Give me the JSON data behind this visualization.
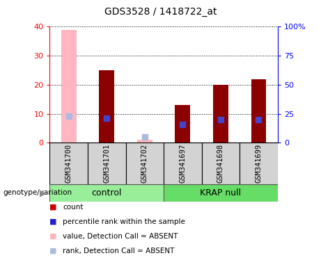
{
  "title": "GDS3528 / 1418722_at",
  "samples": [
    "GSM341700",
    "GSM341701",
    "GSM341702",
    "GSM341697",
    "GSM341698",
    "GSM341699"
  ],
  "absent": [
    true,
    false,
    true,
    false,
    false,
    false
  ],
  "count_values": [
    39,
    25,
    1,
    13,
    20,
    22
  ],
  "percentile_values": [
    23,
    21,
    5,
    16,
    20,
    20
  ],
  "left_ylim": [
    0,
    40
  ],
  "right_ylim": [
    0,
    100
  ],
  "left_yticks": [
    0,
    10,
    20,
    30,
    40
  ],
  "right_yticks": [
    0,
    25,
    50,
    75,
    100
  ],
  "left_yticklabels": [
    "0",
    "10",
    "20",
    "30",
    "40"
  ],
  "right_yticklabels": [
    "0",
    "25",
    "50",
    "75",
    "100%"
  ],
  "bar_color_present": "#8B0000",
  "bar_color_absent": "#FFB6C1",
  "dot_color_present": "#4444CC",
  "dot_color_absent": "#AABBDD",
  "bar_width": 0.4,
  "dot_size": 35,
  "background_color": "#ffffff",
  "legend_items": [
    "count",
    "percentile rank within the sample",
    "value, Detection Call = ABSENT",
    "rank, Detection Call = ABSENT"
  ],
  "legend_colors": [
    "#CC0000",
    "#2222CC",
    "#FFB6C1",
    "#AABBDD"
  ],
  "group_labels": [
    "control",
    "KRAP null"
  ],
  "group_colors": [
    "#99EE99",
    "#66DD66"
  ],
  "label_bg": "#D3D3D3"
}
